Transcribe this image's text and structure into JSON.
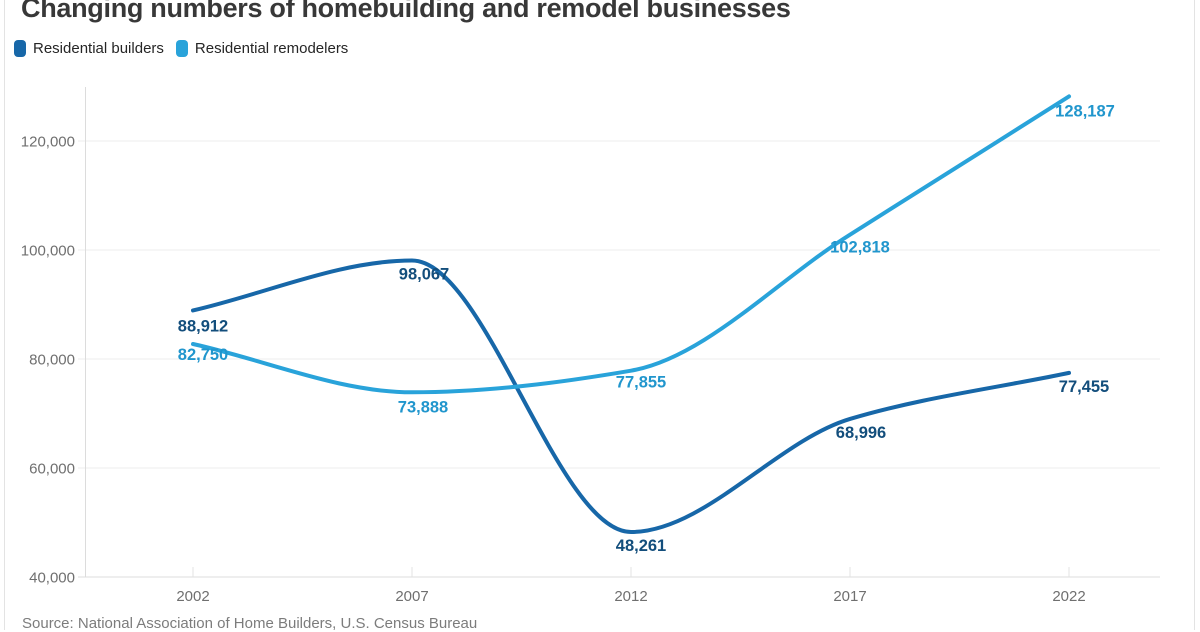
{
  "header": {
    "title": "Changing numbers of homebuilding and remodel businesses"
  },
  "legend": {
    "items": [
      {
        "label": "Residential builders"
      },
      {
        "label": "Residential remodelers"
      }
    ]
  },
  "footer": {
    "source": "Source: National Association of Home Builders, U.S. Census Bureau"
  },
  "colors": {
    "builders_line": "#1767a8",
    "builders_label": "#134e7c",
    "remodelers_line": "#29a3da",
    "remodelers_label": "#2196cd",
    "axis_text": "#6f6f6f",
    "grid": "#ececec",
    "axis_line": "#dcdcdc",
    "title_text": "#383838"
  },
  "chart_data": {
    "type": "line",
    "title": "Changing numbers of homebuilding and remodel businesses",
    "xlabel": "",
    "ylabel": "",
    "categories": [
      "2002",
      "2007",
      "2012",
      "2017",
      "2022"
    ],
    "series": [
      {
        "name": "Residential builders",
        "color": "#1767a8",
        "label_color": "#134e7c",
        "values": [
          88912,
          98067,
          48261,
          68996,
          77455
        ],
        "point_labels": [
          "88,912",
          "98,067",
          "48,261",
          "68,996",
          "77,455"
        ]
      },
      {
        "name": "Residential remodelers",
        "color": "#29a3da",
        "label_color": "#2196cd",
        "values": [
          82750,
          73888,
          77855,
          102818,
          128187
        ],
        "point_labels": [
          "82,750",
          "73,888",
          "77,855",
          "102,818",
          "128,187"
        ]
      }
    ],
    "y_ticks": [
      "40,000",
      "60,000",
      "80,000",
      "100,000",
      "120,000"
    ],
    "y_tick_values": [
      40000,
      60000,
      80000,
      100000,
      120000
    ],
    "ylim": [
      40000,
      130000
    ],
    "grid": "horizontal",
    "legend_position": "top-left",
    "curve": "monotone"
  }
}
